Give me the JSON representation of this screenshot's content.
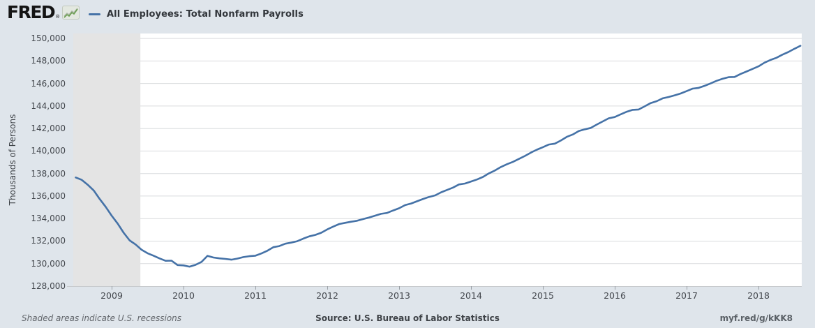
{
  "header": {
    "logo_text": "FRED",
    "logo_reg": "®",
    "legend_title": "All Employees: Total Nonfarm Payrolls"
  },
  "y_axis": {
    "title": "Thousands of Persons",
    "tick_labels": [
      "150,000",
      "148,000",
      "146,000",
      "144,000",
      "142,000",
      "140,000",
      "138,000",
      "136,000",
      "134,000",
      "132,000",
      "130,000",
      "128,000"
    ]
  },
  "x_axis": {
    "tick_labels": [
      "2009",
      "2010",
      "2011",
      "2012",
      "2013",
      "2014",
      "2015",
      "2016",
      "2017",
      "2018"
    ]
  },
  "footer": {
    "note": "Shaded areas indicate U.S. recessions",
    "source": "Source: U.S. Bureau of Labor Statistics",
    "link": "myf.red/g/kKK8"
  },
  "colors": {
    "background": "#dfe5eb",
    "plot_background": "#ffffff",
    "gridline": "#d9dbdd",
    "recession_band": "#e4e4e4",
    "series_line": "#4572a7",
    "sparkline_green": "#6a9e50",
    "sparkline_gray": "#a9b4a4"
  },
  "chart_data": {
    "type": "line",
    "title": "All Employees: Total Nonfarm Payrolls",
    "ylabel": "Thousands of Persons",
    "frequency": "Monthly",
    "xlim": [
      2008.466,
      2018.602
    ],
    "ylim": [
      128000,
      150000
    ],
    "y_edge_max": 150440,
    "y_ticks": [
      150000,
      148000,
      146000,
      144000,
      142000,
      140000,
      138000,
      136000,
      134000,
      132000,
      130000,
      128000
    ],
    "x_ticks": [
      2009,
      2010,
      2011,
      2012,
      2013,
      2014,
      2015,
      2016,
      2017,
      2018
    ],
    "grid": "horizontal",
    "legend_position": "top-left",
    "recessions": [
      {
        "start": 2008.466,
        "end": 2009.4
      }
    ],
    "series": [
      {
        "name": "All Employees: Total Nonfarm Payrolls",
        "color": "#4572a7",
        "x_start": 2008.5,
        "x_step_months": 1,
        "values": [
          137650,
          137440,
          137010,
          136500,
          135740,
          135050,
          134260,
          133560,
          132740,
          132060,
          131700,
          131230,
          130920,
          130700,
          130460,
          130250,
          130260,
          129870,
          129840,
          129730,
          129890,
          130150,
          130690,
          130540,
          130470,
          130420,
          130350,
          130450,
          130580,
          130660,
          130700,
          130900,
          131140,
          131460,
          131560,
          131770,
          131870,
          131990,
          132220,
          132420,
          132550,
          132740,
          133040,
          133290,
          133520,
          133620,
          133720,
          133810,
          133960,
          134100,
          134260,
          134420,
          134500,
          134720,
          134920,
          135200,
          135340,
          135540,
          135740,
          135920,
          136060,
          136330,
          136540,
          136750,
          137030,
          137110,
          137290,
          137470,
          137700,
          138020,
          138270,
          138580,
          138830,
          139040,
          139300,
          139560,
          139860,
          140120,
          140340,
          140580,
          140660,
          140930,
          141260,
          141470,
          141780,
          141930,
          142050,
          142350,
          142630,
          142910,
          143020,
          143260,
          143490,
          143660,
          143690,
          143970,
          144260,
          144430,
          144680,
          144800,
          144950,
          145110,
          145320,
          145540,
          145610,
          145790,
          146000,
          146240,
          146420,
          146560,
          146580,
          146840,
          147060,
          147290,
          147520,
          147850,
          148090,
          148280,
          148560,
          148800,
          149080,
          149350
        ]
      }
    ]
  }
}
